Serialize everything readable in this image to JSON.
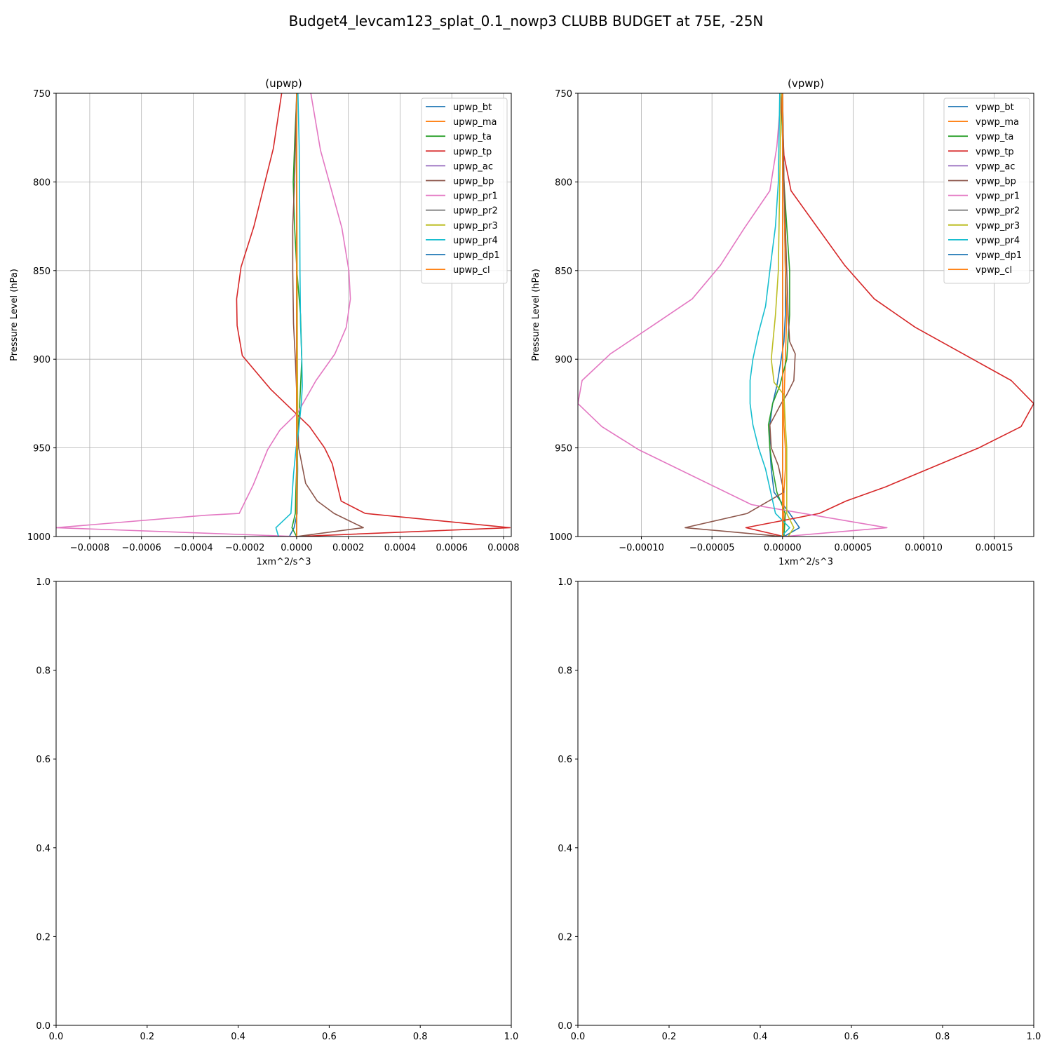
{
  "figure": {
    "suptitle": "Budget4_levcam123_splat_0.1_nowp3 CLUBB BUDGET at 75E, -25N"
  },
  "chart_data": [
    {
      "type": "line",
      "title": "(upwp)",
      "xlabel": "1xm^2/s^3",
      "ylabel": "Pressure Level (hPa)",
      "xlim": [
        -0.00093,
        0.00083
      ],
      "ylim": [
        1000,
        750
      ],
      "xticks": [
        -0.0008,
        -0.0006,
        -0.0004,
        -0.0002,
        0.0,
        0.0002,
        0.0004,
        0.0006,
        0.0008
      ],
      "xtick_labels": [
        "−0.0008",
        "−0.0006",
        "−0.0004",
        "−0.0002",
        "0.0000",
        "0.0002",
        "0.0004",
        "0.0006",
        "0.0008"
      ],
      "yticks": [
        750,
        800,
        850,
        900,
        950,
        1000
      ],
      "ytick_labels": [
        "750",
        "800",
        "850",
        "900",
        "950",
        "1000"
      ],
      "grid": true,
      "legend": "upper-right",
      "series": [
        {
          "name": "upwp_bt",
          "color": "#1f77b4",
          "x": [
            0,
            0,
            0,
            0,
            0,
            0,
            0,
            1e-06,
            2e-06,
            3e-06,
            4e-06,
            3e-06,
            2e-06,
            -1e-05,
            -2.8e-05,
            0
          ],
          "y": [
            750,
            775,
            800,
            825,
            850,
            875,
            900,
            925,
            937,
            950,
            962,
            975,
            987,
            995,
            1000,
            1000
          ]
        },
        {
          "name": "upwp_ma",
          "color": "#ff7f0e",
          "x": [
            0,
            0,
            0,
            0,
            0,
            0,
            0,
            0,
            0,
            0,
            0,
            0,
            0,
            0,
            0,
            0
          ],
          "y": [
            750,
            775,
            800,
            825,
            850,
            875,
            900,
            925,
            937,
            950,
            962,
            975,
            987,
            995,
            1000,
            1000
          ]
        },
        {
          "name": "upwp_ta",
          "color": "#2ca02c",
          "x": [
            1e-06,
            -7e-06,
            -1.3e-05,
            -8e-06,
            1e-06,
            1.5e-05,
            2e-05,
            1.2e-05,
            8e-06,
            4e-06,
            0,
            -3e-06,
            -5e-06,
            -1.8e-05,
            0
          ],
          "y": [
            750,
            775,
            800,
            825,
            850,
            875,
            900,
            925,
            937,
            950,
            962,
            975,
            987,
            995,
            1000
          ]
        },
        {
          "name": "upwp_tp",
          "color": "#d62728",
          "x": [
            -5.8e-05,
            -9e-05,
            -0.000165,
            -0.000215,
            -0.000232,
            -0.00023,
            -0.00021,
            -0.0001,
            5e-05,
            0.000108,
            0.000138,
            0.000172,
            0.000265,
            0.000825,
            0
          ],
          "y": [
            750,
            781,
            825,
            848,
            866,
            881,
            898,
            917,
            938,
            950,
            959,
            980,
            987,
            995,
            1000
          ]
        },
        {
          "name": "upwp_ac",
          "color": "#9467bd",
          "x": [
            0,
            0,
            0,
            0,
            0,
            0,
            0,
            0,
            0,
            0,
            0
          ],
          "y": [
            750,
            800,
            850,
            900,
            925,
            950,
            975,
            987,
            995,
            1000,
            1000
          ]
        },
        {
          "name": "upwp_bp",
          "color": "#8c564b",
          "x": [
            0,
            -8e-06,
            -1.5e-05,
            -1.5e-05,
            -1.2e-05,
            -5e-06,
            2e-06,
            8e-06,
            3.5e-05,
            8e-05,
            0.000145,
            0.000258,
            0
          ],
          "y": [
            750,
            800,
            825,
            850,
            880,
            900,
            925,
            950,
            970,
            980,
            987,
            995,
            1000
          ]
        },
        {
          "name": "upwp_pr1",
          "color": "#e377c2",
          "x": [
            5.5e-05,
            9.2e-05,
            0.000175,
            0.000202,
            0.000208,
            0.000192,
            0.000148,
            7.5e-05,
            5e-06,
            -6.5e-05,
            -0.000112,
            -0.000168,
            -0.000222,
            -0.000352,
            -0.00093,
            0
          ],
          "y": [
            750,
            782,
            826,
            850,
            866,
            882,
            897,
            912,
            930,
            940,
            951,
            971,
            987,
            988,
            995,
            1000
          ]
        },
        {
          "name": "upwp_pr2",
          "color": "#7f7f7f",
          "x": [
            0,
            0,
            0,
            0,
            0,
            0,
            0,
            0
          ],
          "y": [
            750,
            800,
            850,
            900,
            950,
            987,
            995,
            1000
          ]
        },
        {
          "name": "upwp_pr3",
          "color": "#bcbd22",
          "x": [
            0,
            1e-06,
            2e-06,
            3e-06,
            4e-06,
            3e-06,
            2e-06,
            1e-06,
            0,
            0
          ],
          "y": [
            750,
            800,
            850,
            900,
            925,
            950,
            975,
            987,
            995,
            1000
          ]
        },
        {
          "name": "upwp_pr4",
          "color": "#17becf",
          "x": [
            5e-06,
            1e-05,
            1.2e-05,
            1.3e-05,
            1.5e-05,
            2e-05,
            2.2e-05,
            1.8e-05,
            8e-06,
            -2e-06,
            -1.2e-05,
            -2.2e-05,
            -8e-05,
            -7e-05
          ],
          "y": [
            750,
            780,
            820,
            850,
            880,
            900,
            915,
            925,
            940,
            950,
            965,
            987,
            995,
            1000
          ]
        },
        {
          "name": "upwp_dp1",
          "color": "#1f77b4",
          "x": [
            0,
            0,
            0,
            0,
            0,
            0
          ],
          "y": [
            750,
            850,
            950,
            987,
            995,
            1000
          ]
        },
        {
          "name": "upwp_cl",
          "color": "#ff7f0e",
          "x": [
            0,
            0,
            0,
            0,
            0,
            0
          ],
          "y": [
            750,
            850,
            950,
            987,
            995,
            1000
          ]
        }
      ]
    },
    {
      "type": "line",
      "title": "(vpwp)",
      "xlabel": "1xm^2/s^3",
      "ylabel": "Pressure Level (hPa)",
      "xlim": [
        -0.000145,
        0.000178
      ],
      "ylim": [
        1000,
        750
      ],
      "xticks": [
        -0.0001,
        -5e-05,
        0.0,
        5e-05,
        0.0001,
        0.00015
      ],
      "xtick_labels": [
        "−0.00010",
        "−0.00005",
        "0.00000",
        "0.00005",
        "0.00010",
        "0.00015"
      ],
      "yticks": [
        750,
        800,
        850,
        900,
        950,
        1000
      ],
      "ytick_labels": [
        "750",
        "800",
        "850",
        "900",
        "950",
        "1000"
      ],
      "grid": true,
      "legend": "upper-right",
      "series": [
        {
          "name": "vpwp_bt",
          "color": "#1f77b4",
          "x": [
            0,
            1e-06,
            2e-06,
            2e-06,
            1e-06,
            -1e-06,
            -4e-06,
            -7e-06,
            -9e-06,
            -9e-06,
            -8e-06,
            -6e-06,
            5e-06,
            1.2e-05,
            1e-06
          ],
          "y": [
            750,
            800,
            850,
            875,
            890,
            900,
            915,
            925,
            937,
            950,
            962,
            975,
            987,
            995,
            1000
          ]
        },
        {
          "name": "vpwp_ma",
          "color": "#ff7f0e",
          "x": [
            -1e-06,
            1e-06,
            2e-06,
            3e-06,
            2e-06,
            1e-06,
            1e-06,
            2e-06,
            2e-06,
            1e-06,
            1e-06,
            1e-06,
            1e-06,
            1e-06
          ],
          "y": [
            750,
            800,
            850,
            875,
            900,
            925,
            937,
            950,
            962,
            975,
            987,
            995,
            1000,
            1000
          ]
        },
        {
          "name": "vpwp_ta",
          "color": "#2ca02c",
          "x": [
            -1e-06,
            1e-06,
            3e-06,
            5e-06,
            5e-06,
            3e-06,
            -2e-06,
            -7e-06,
            -1e-05,
            -9e-06,
            -7e-06,
            -4e-06,
            2e-06,
            1e-06
          ],
          "y": [
            750,
            800,
            825,
            850,
            875,
            900,
            915,
            925,
            937,
            950,
            962,
            975,
            987,
            1000
          ]
        },
        {
          "name": "vpwp_tp",
          "color": "#d62728",
          "x": [
            -1e-06,
            1e-06,
            6e-06,
            2.5e-05,
            4.4e-05,
            6.5e-05,
            9.4e-05,
            0.000162,
            0.000178,
            0.000169,
            0.000139,
            7.3e-05,
            4.5e-05,
            2.6e-05,
            -2.6e-05,
            1e-06
          ],
          "y": [
            750,
            785,
            805,
            826,
            847,
            866,
            882,
            912,
            925,
            938,
            950,
            972,
            980,
            987,
            995,
            1000
          ]
        },
        {
          "name": "vpwp_ac",
          "color": "#9467bd",
          "x": [
            0,
            0,
            0,
            0,
            0,
            0
          ],
          "y": [
            750,
            850,
            950,
            987,
            995,
            1000
          ]
        },
        {
          "name": "vpwp_bp",
          "color": "#8c564b",
          "x": [
            0,
            1e-06,
            3e-06,
            4e-06,
            5e-06,
            9e-06,
            8e-06,
            3e-06,
            -1e-06,
            -9e-06,
            -8e-06,
            -3e-06,
            1e-06,
            -2.5e-05,
            -6.9e-05,
            0
          ],
          "y": [
            750,
            800,
            850,
            875,
            890,
            897,
            912,
            920,
            925,
            937,
            950,
            960,
            975,
            987,
            995,
            1000
          ]
        },
        {
          "name": "vpwp_pr1",
          "color": "#e377c2",
          "x": [
            -1e-06,
            -4e-06,
            -9e-06,
            -2.7e-05,
            -4.4e-05,
            -6.4e-05,
            -9.2e-05,
            -0.000122,
            -0.000142,
            -0.000145,
            -0.000128,
            -0.000102,
            -2.2e-05,
            7.4e-05,
            1e-06
          ],
          "y": [
            750,
            780,
            805,
            826,
            847,
            866,
            881,
            897,
            912,
            925,
            938,
            951,
            982,
            995,
            1000
          ]
        },
        {
          "name": "vpwp_pr2",
          "color": "#7f7f7f",
          "x": [
            0,
            0,
            0,
            0,
            0,
            0
          ],
          "y": [
            750,
            850,
            950,
            987,
            995,
            1000
          ]
        },
        {
          "name": "vpwp_pr3",
          "color": "#bcbd22",
          "x": [
            -1e-06,
            -2e-06,
            -3e-06,
            -5e-06,
            -8e-06,
            -6e-06,
            1e-06,
            2e-06,
            3e-06,
            3e-06,
            8e-06,
            4e-06
          ],
          "y": [
            750,
            800,
            850,
            875,
            900,
            913,
            920,
            937,
            950,
            987,
            995,
            1000
          ]
        },
        {
          "name": "vpwp_pr4",
          "color": "#17becf",
          "x": [
            -2e-06,
            -3e-06,
            -5e-06,
            -9e-06,
            -1.2e-05,
            -1.7e-05,
            -2.1e-05,
            -2.3e-05,
            -2.3e-05,
            -2.1e-05,
            -1.7e-05,
            -1.2e-05,
            -5e-06,
            5e-06,
            -1e-06
          ],
          "y": [
            750,
            800,
            825,
            850,
            870,
            885,
            900,
            912,
            925,
            937,
            950,
            962,
            987,
            995,
            1000
          ]
        },
        {
          "name": "vpwp_dp1",
          "color": "#1f77b4",
          "x": [
            0,
            0,
            0,
            0,
            0,
            0
          ],
          "y": [
            750,
            850,
            950,
            987,
            995,
            1000
          ]
        },
        {
          "name": "vpwp_cl",
          "color": "#ff7f0e",
          "x": [
            0,
            0,
            0,
            0,
            0,
            0
          ],
          "y": [
            750,
            850,
            950,
            987,
            995,
            1000
          ]
        }
      ]
    },
    {
      "type": "line",
      "title": "",
      "xlim": [
        0,
        1
      ],
      "ylim": [
        0,
        1
      ],
      "xticks": [
        0,
        0.2,
        0.4,
        0.6,
        0.8,
        1.0
      ],
      "xtick_labels": [
        "0.0",
        "0.2",
        "0.4",
        "0.6",
        "0.8",
        "1.0"
      ],
      "yticks": [
        0,
        0.2,
        0.4,
        0.6,
        0.8,
        1.0
      ],
      "ytick_labels": [
        "0.0",
        "0.2",
        "0.4",
        "0.6",
        "0.8",
        "1.0"
      ],
      "grid": false,
      "series": []
    },
    {
      "type": "line",
      "title": "",
      "xlim": [
        0,
        1
      ],
      "ylim": [
        0,
        1
      ],
      "xticks": [
        0,
        0.2,
        0.4,
        0.6,
        0.8,
        1.0
      ],
      "xtick_labels": [
        "0.0",
        "0.2",
        "0.4",
        "0.6",
        "0.8",
        "1.0"
      ],
      "yticks": [
        0,
        0.2,
        0.4,
        0.6,
        0.8,
        1.0
      ],
      "ytick_labels": [
        "0.0",
        "0.2",
        "0.4",
        "0.6",
        "0.8",
        "1.0"
      ],
      "grid": false,
      "series": []
    }
  ]
}
